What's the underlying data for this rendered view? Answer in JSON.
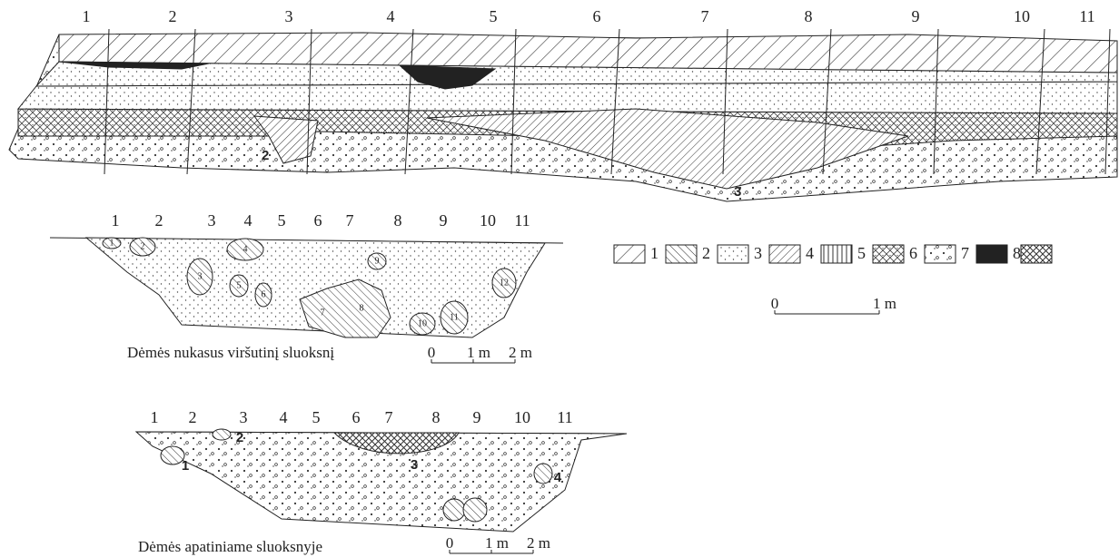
{
  "profile": {
    "stakes": [
      "1",
      "2",
      "3",
      "4",
      "5",
      "6",
      "7",
      "8",
      "9",
      "10",
      "11"
    ],
    "pit_labels": [
      "2",
      "3"
    ]
  },
  "plan_upper": {
    "stakes": [
      "1",
      "2",
      "3",
      "4",
      "5",
      "6",
      "7",
      "8",
      "9",
      "10",
      "11"
    ],
    "spots": [
      "1",
      "2",
      "3",
      "4",
      "5",
      "6",
      "7",
      "8",
      "9",
      "10",
      "11",
      "12"
    ],
    "caption": "Dėmės nukasus viršutinį sluoksnį",
    "scale": [
      "0",
      "1 m",
      "2 m"
    ]
  },
  "legend": {
    "items": [
      "1",
      "2",
      "3",
      "4",
      "5",
      "6",
      "7",
      "8"
    ],
    "scale": [
      "0",
      "1 m"
    ]
  },
  "plan_lower": {
    "stakes": [
      "1",
      "2",
      "3",
      "4",
      "5",
      "6",
      "7",
      "8",
      "9",
      "10",
      "11"
    ],
    "spots": [
      "1",
      "2",
      "3",
      "4"
    ],
    "caption": "Dėmės apatiniame sluoksnyje",
    "scale": [
      "0",
      "1 m",
      "2 m"
    ]
  }
}
